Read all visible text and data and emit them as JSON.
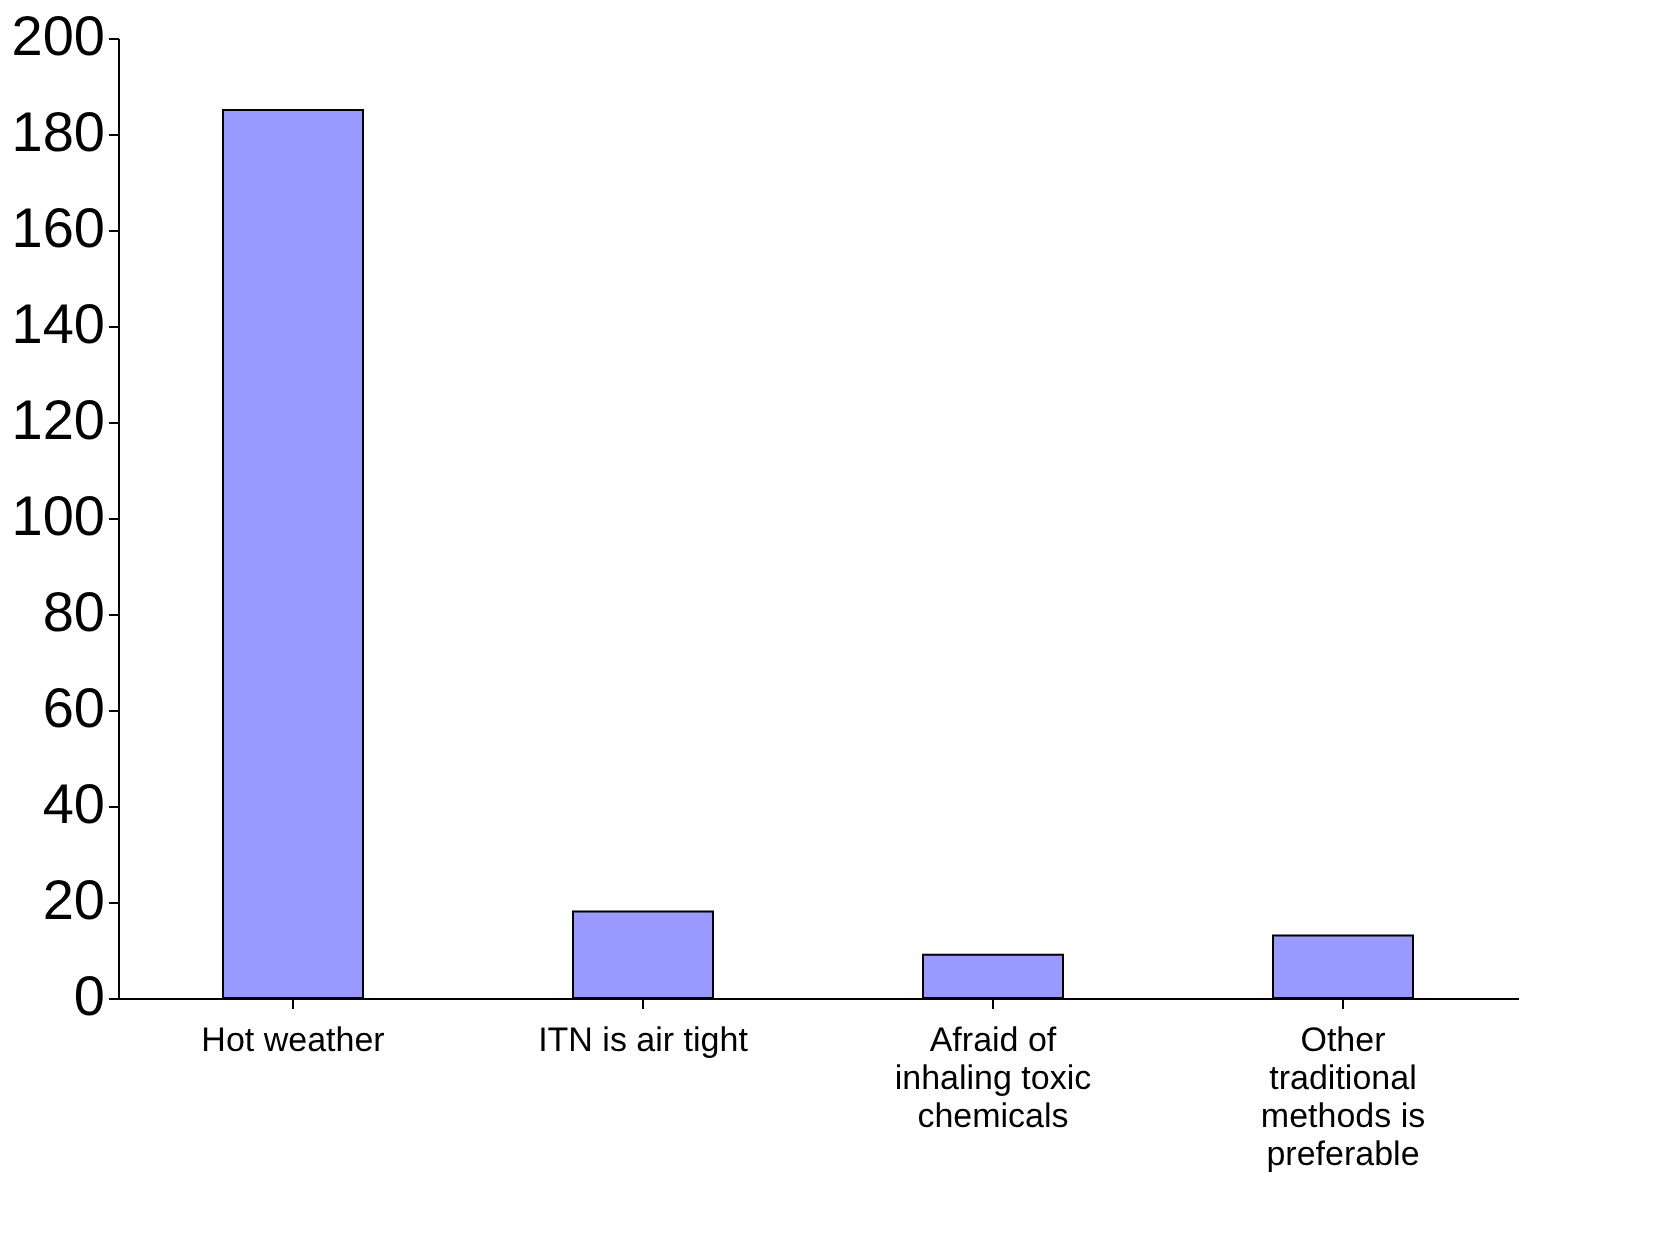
{
  "chart_data": {
    "type": "bar",
    "categories": [
      "Hot weather",
      "ITN is air tight",
      "Afraid of inhaling toxic chemicals",
      "Other traditional methods is preferable"
    ],
    "values": [
      185,
      18,
      9,
      13
    ],
    "color": "#9999ff",
    "ylim": [
      0,
      200
    ],
    "yticks": [
      0,
      20,
      40,
      60,
      80,
      100,
      120,
      140,
      160,
      180,
      200
    ],
    "grid": false
  }
}
